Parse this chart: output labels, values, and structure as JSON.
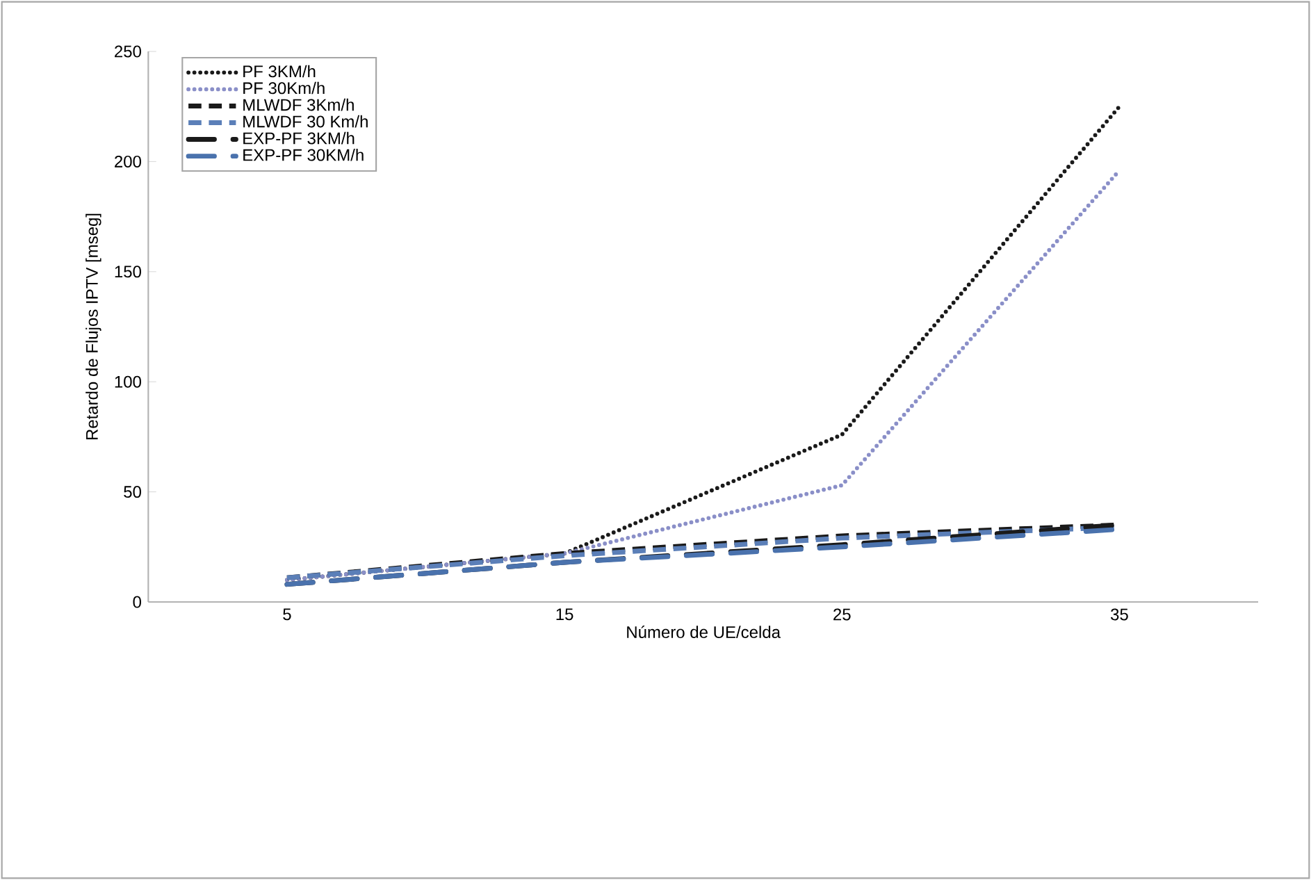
{
  "chart_data": {
    "type": "line",
    "xlabel": "Número de UE/celda",
    "ylabel": "Retardo de Flujos IPTV [mseg]",
    "categories": [
      "5",
      "15",
      "25",
      "35"
    ],
    "ylim": [
      0,
      250
    ],
    "yticks": [
      0,
      50,
      100,
      150,
      200,
      250
    ],
    "grid": false,
    "legend": "top left",
    "marker": "none",
    "series": [
      {
        "name": "PF 3KM/h",
        "color": "#1a1a1a",
        "line_style": "dotted",
        "values": [
          10,
          22,
          76,
          225
        ]
      },
      {
        "name": "PF 30Km/h",
        "color": "#8a8fc8",
        "line_style": "dotted",
        "values": [
          10,
          22,
          53,
          196
        ]
      },
      {
        "name": "MLWDF 3Km/h",
        "color": "#1a1a1a",
        "line_style": "dashed",
        "values": [
          11,
          22,
          30,
          35
        ]
      },
      {
        "name": "MLWDF 30 Km/h",
        "color": "#5b7fb8",
        "line_style": "dashed",
        "values": [
          11,
          21,
          29,
          34
        ]
      },
      {
        "name": "EXP-PF 3KM/h",
        "color": "#1a1a1a",
        "line_style": "dashdot",
        "values": [
          8,
          18,
          26,
          35
        ]
      },
      {
        "name": "EXP-PF 30KM/h",
        "color": "#4a72ad",
        "line_style": "dashdot",
        "values": [
          8,
          18,
          25,
          33
        ]
      }
    ]
  }
}
